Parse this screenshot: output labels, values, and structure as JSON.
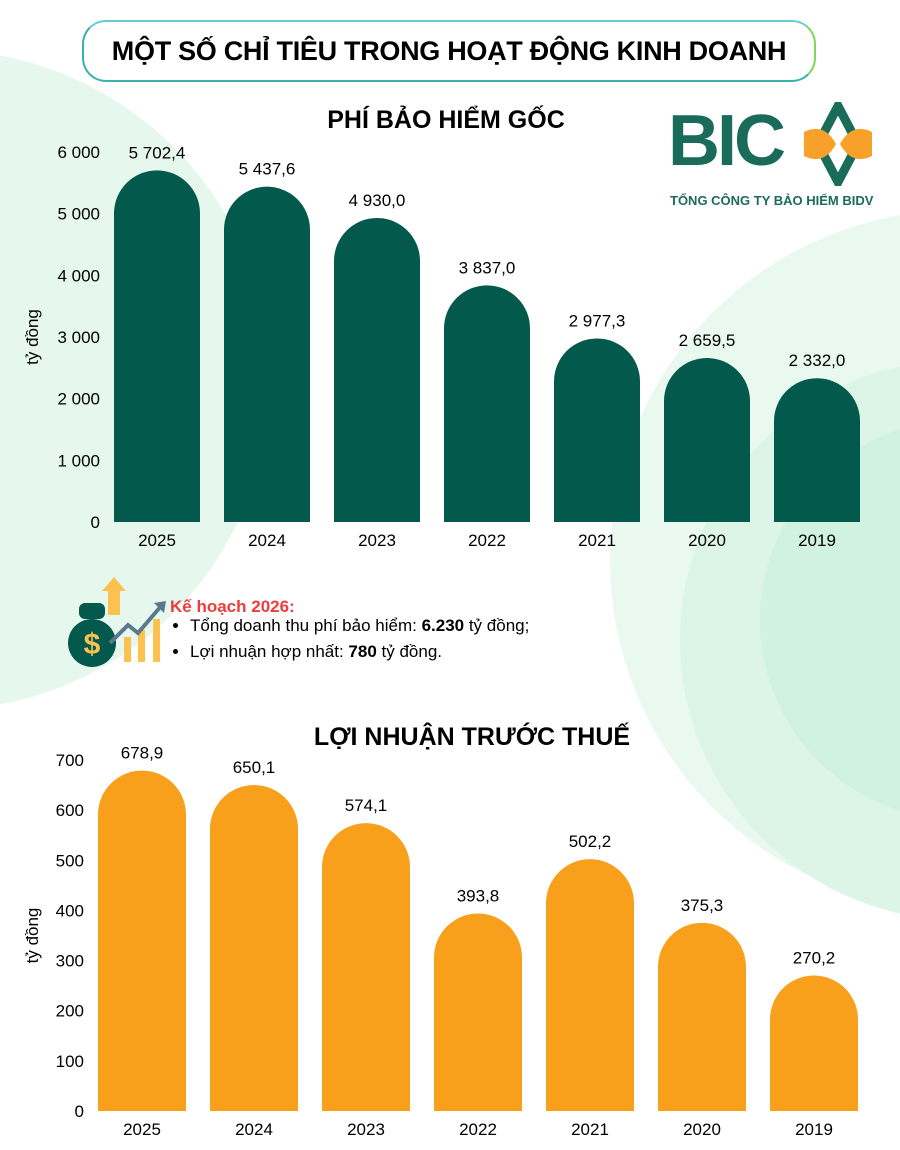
{
  "title": "MỘT SỐ CHỈ TIÊU TRONG HOẠT ĐỘNG KINH DOANH",
  "logo": {
    "text": "BIC",
    "subtitle": "TỔNG CÔNG TY BẢO HIỂM BIDV",
    "colors": {
      "green": "#1a6b5a",
      "orange": "#f7a12a"
    }
  },
  "plan": {
    "heading": "Kế hoạch 2026:",
    "items": [
      {
        "label": "Tổng doanh thu phí bảo hiểm: ",
        "value": "6.230",
        "unit": " tỷ đồng;"
      },
      {
        "label": "Lợi nhuận hợp nhất: ",
        "value": "780",
        "unit": " tỷ đồng."
      }
    ],
    "icon": "money-bag-growth-icon"
  },
  "chart_data": [
    {
      "type": "bar",
      "title": "PHÍ BẢO HIỂM GỐC",
      "ylabel": "tỷ đồng",
      "xlabel": "",
      "categories": [
        "2025",
        "2024",
        "2023",
        "2022",
        "2021",
        "2020",
        "2019"
      ],
      "values": [
        5702.4,
        5437.6,
        4930.0,
        3837.0,
        2977.3,
        2659.5,
        2332.0
      ],
      "data_labels": [
        "5 702,4",
        "5 437,6",
        "4 930,0",
        "3 837,0",
        "2 977,3",
        "2 659,5",
        "2 332,0"
      ],
      "ylim": [
        0,
        6000
      ],
      "yticks": [
        "0",
        "1 000",
        "2 000",
        "3 000",
        "4 000",
        "5 000",
        "6 000"
      ],
      "grid": false,
      "color": "#02594c"
    },
    {
      "type": "bar",
      "title": "LỢI NHUẬN TRƯỚC THUẾ",
      "ylabel": "tỷ đồng",
      "xlabel": "",
      "categories": [
        "2025",
        "2024",
        "2023",
        "2022",
        "2021",
        "2020",
        "2019"
      ],
      "values": [
        678.9,
        650.1,
        574.1,
        393.8,
        502.2,
        375.3,
        270.2
      ],
      "data_labels": [
        "678,9",
        "650,1",
        "574,1",
        "393,8",
        "502,2",
        "375,3",
        "270,2"
      ],
      "ylim": [
        0,
        700
      ],
      "yticks": [
        "0",
        "100",
        "200",
        "300",
        "400",
        "500",
        "600",
        "700"
      ],
      "grid": false,
      "color": "#f89f1b"
    }
  ]
}
